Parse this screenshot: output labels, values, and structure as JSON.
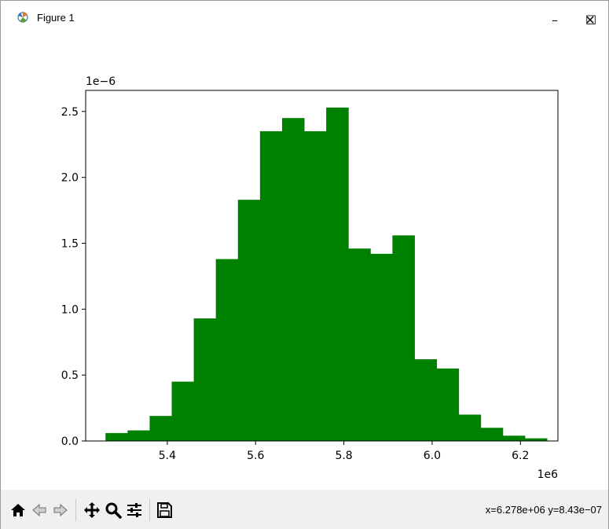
{
  "window": {
    "title": "Figure 1",
    "controls": {
      "minimize": "–",
      "maximize": "☐",
      "close": "✕"
    }
  },
  "figure": {
    "x_offset_label": "1e6",
    "y_offset_label": "1e−6"
  },
  "chart_data": {
    "type": "bar",
    "title": "",
    "xlabel": "",
    "ylabel": "",
    "bar_color": "#008000",
    "bin_edges": [
      5.26,
      5.31,
      5.36,
      5.41,
      5.46,
      5.51,
      5.56,
      5.61,
      5.66,
      5.71,
      5.76,
      5.81,
      5.86,
      5.91,
      5.96,
      6.01,
      6.06,
      6.11,
      6.16,
      6.21,
      6.26
    ],
    "values": [
      0.06,
      0.08,
      0.19,
      0.45,
      0.93,
      1.38,
      1.83,
      2.35,
      2.45,
      2.35,
      2.53,
      1.46,
      1.42,
      1.56,
      0.62,
      0.55,
      0.2,
      0.1,
      0.04,
      0.02
    ],
    "x_ticks": [
      5.4,
      5.6,
      5.8,
      6.0,
      6.2
    ],
    "x_tick_labels": [
      "5.4",
      "5.6",
      "5.8",
      "6.0",
      "6.2"
    ],
    "y_ticks": [
      0,
      0.5,
      1.0,
      1.5,
      2.0,
      2.5
    ],
    "y_tick_labels": [
      "0.0",
      "0.5",
      "1.0",
      "1.5",
      "2.0",
      "2.5"
    ],
    "xlim": [
      5.215,
      6.285
    ],
    "ylim": [
      0,
      2.66
    ],
    "grid": false,
    "legend": "none"
  },
  "toolbar": {
    "buttons": [
      "home-icon",
      "back-icon",
      "forward-icon",
      "pan-icon",
      "zoom-icon",
      "configure-subplots-icon",
      "save-icon"
    ],
    "coords": "x=6.278e+06 y=8.43e−07"
  }
}
